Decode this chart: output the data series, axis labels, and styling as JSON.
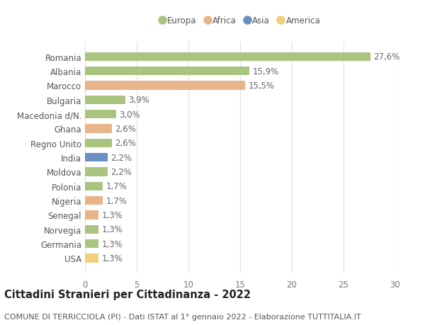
{
  "countries": [
    "Romania",
    "Albania",
    "Marocco",
    "Bulgaria",
    "Macedonia d/N.",
    "Ghana",
    "Regno Unito",
    "India",
    "Moldova",
    "Polonia",
    "Nigeria",
    "Senegal",
    "Norvegia",
    "Germania",
    "USA"
  ],
  "values": [
    27.6,
    15.9,
    15.5,
    3.9,
    3.0,
    2.6,
    2.6,
    2.2,
    2.2,
    1.7,
    1.7,
    1.3,
    1.3,
    1.3,
    1.3
  ],
  "labels": [
    "27,6%",
    "15,9%",
    "15,5%",
    "3,9%",
    "3,0%",
    "2,6%",
    "2,6%",
    "2,2%",
    "2,2%",
    "1,7%",
    "1,7%",
    "1,3%",
    "1,3%",
    "1,3%",
    "1,3%"
  ],
  "continents": [
    "Europa",
    "Europa",
    "Africa",
    "Europa",
    "Europa",
    "Africa",
    "Europa",
    "Asia",
    "Europa",
    "Europa",
    "Africa",
    "Africa",
    "Europa",
    "Europa",
    "America"
  ],
  "colors": {
    "Europa": "#a8c47f",
    "Africa": "#e8b48a",
    "Asia": "#6b8fc4",
    "America": "#f0d07a"
  },
  "legend_order": [
    "Europa",
    "Africa",
    "Asia",
    "America"
  ],
  "title": "Cittadini Stranieri per Cittadinanza - 2022",
  "subtitle": "COMUNE DI TERRICCIOLA (PI) - Dati ISTAT al 1° gennaio 2022 - Elaborazione TUTTITALIA.IT",
  "xlim": [
    0,
    30
  ],
  "xticks": [
    0,
    5,
    10,
    15,
    20,
    25,
    30
  ],
  "background_color": "#ffffff",
  "grid_color": "#e0e0e0",
  "bar_height": 0.6,
  "label_fontsize": 8.5,
  "tick_fontsize": 8.5,
  "title_fontsize": 10.5,
  "subtitle_fontsize": 8.0
}
